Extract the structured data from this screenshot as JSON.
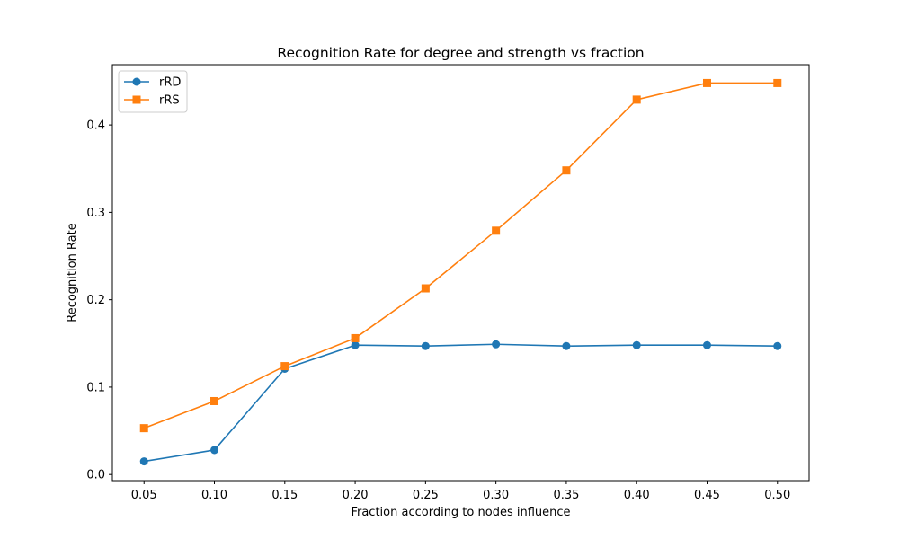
{
  "chart_data": {
    "type": "line",
    "title": "Recognition Rate for degree and strength vs fraction",
    "xlabel": "Fraction according to nodes influence",
    "ylabel": "Recognition Rate",
    "x": [
      0.05,
      0.1,
      0.15,
      0.2,
      0.25,
      0.3,
      0.35,
      0.4,
      0.45,
      0.5
    ],
    "x_tick_labels": [
      "0.05",
      "0.10",
      "0.15",
      "0.20",
      "0.25",
      "0.30",
      "0.35",
      "0.40",
      "0.45",
      "0.50"
    ],
    "y_ticks": [
      0.0,
      0.1,
      0.2,
      0.3,
      0.4
    ],
    "y_tick_labels": [
      "0.0",
      "0.1",
      "0.2",
      "0.3",
      "0.4"
    ],
    "xlim": [
      0.0275,
      0.5225
    ],
    "ylim": [
      -0.007,
      0.469
    ],
    "grid": false,
    "legend_position": "upper-left",
    "series": [
      {
        "name": "rRD",
        "color": "#1f77b4",
        "marker": "circle",
        "values": [
          0.015,
          0.028,
          0.121,
          0.148,
          0.147,
          0.149,
          0.147,
          0.148,
          0.148,
          0.147
        ]
      },
      {
        "name": "rRS",
        "color": "#ff7f0e",
        "marker": "square",
        "values": [
          0.053,
          0.084,
          0.124,
          0.156,
          0.213,
          0.279,
          0.348,
          0.429,
          0.448,
          0.448
        ]
      }
    ]
  }
}
